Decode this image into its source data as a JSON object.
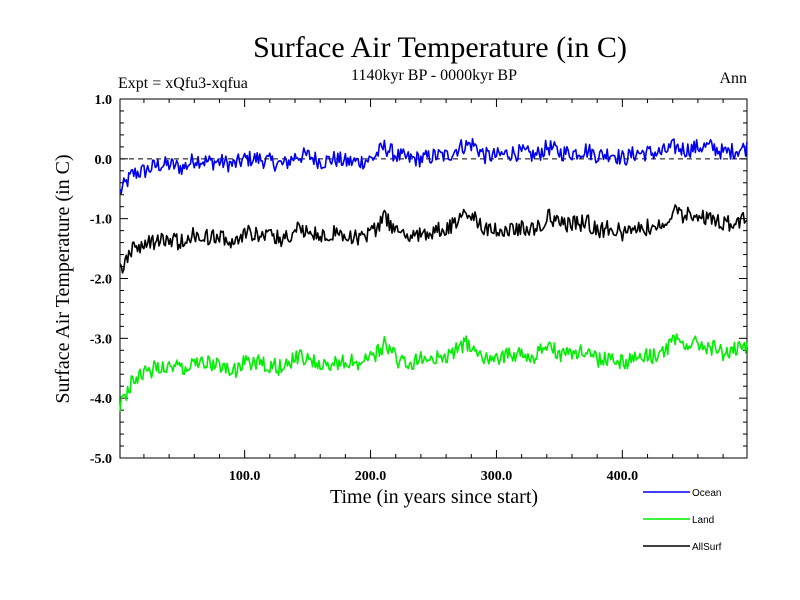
{
  "chart_data": {
    "type": "line",
    "title": "Surface Air Temperature (in C)",
    "subtitle": "1140kyr BP - 0000kyr BP",
    "left_note": "Expt = xQfu3-xqfua",
    "right_note": "Ann",
    "xlabel": "Time (in years since start)",
    "ylabel": "Surface Air Temperature (in C)",
    "xlim": [
      1,
      499
    ],
    "ylim": [
      -5.0,
      1.0
    ],
    "x_ticks": [
      100,
      200,
      300,
      400
    ],
    "x_tick_labels": [
      "100.0",
      "200.0",
      "300.0",
      "400.0"
    ],
    "y_ticks": [
      -5.0,
      -4.0,
      -3.0,
      -2.0,
      -1.0,
      0.0,
      1.0
    ],
    "y_tick_labels": [
      "-5.0",
      "-4.0",
      "-3.0",
      "-2.0",
      "-1.0",
      "0.0",
      "1.0"
    ],
    "reference_line": 0.0,
    "legend_position": "bottom-right",
    "series": [
      {
        "name": "Ocean",
        "color": "#0000ee",
        "x_step": 10,
        "values": [
          -0.55,
          -0.25,
          -0.2,
          -0.1,
          -0.1,
          -0.15,
          0.0,
          -0.05,
          -0.05,
          -0.1,
          0.0,
          0.0,
          -0.05,
          -0.1,
          0.05,
          0.05,
          -0.05,
          0.0,
          -0.05,
          -0.05,
          0.0,
          0.2,
          0.05,
          0.0,
          0.0,
          0.05,
          0.05,
          0.2,
          0.25,
          0.05,
          0.05,
          0.1,
          0.1,
          0.05,
          0.2,
          0.1,
          0.1,
          0.15,
          0.05,
          0.1,
          0.0,
          0.1,
          0.1,
          0.1,
          0.2,
          0.15,
          0.2,
          0.2,
          0.1,
          0.15
        ]
      },
      {
        "name": "Land",
        "color": "#00ee00",
        "x_step": 10,
        "values": [
          -4.15,
          -3.7,
          -3.6,
          -3.45,
          -3.45,
          -3.5,
          -3.35,
          -3.4,
          -3.45,
          -3.55,
          -3.4,
          -3.4,
          -3.45,
          -3.5,
          -3.3,
          -3.35,
          -3.45,
          -3.4,
          -3.4,
          -3.4,
          -3.35,
          -3.1,
          -3.35,
          -3.4,
          -3.35,
          -3.35,
          -3.3,
          -3.1,
          -3.1,
          -3.3,
          -3.3,
          -3.25,
          -3.3,
          -3.3,
          -3.1,
          -3.25,
          -3.25,
          -3.2,
          -3.35,
          -3.3,
          -3.4,
          -3.3,
          -3.3,
          -3.25,
          -3.05,
          -3.1,
          -3.1,
          -3.15,
          -3.25,
          -3.2
        ]
      },
      {
        "name": "AllSurf",
        "color": "#000000",
        "x_step": 10,
        "values": [
          -1.85,
          -1.5,
          -1.45,
          -1.35,
          -1.35,
          -1.4,
          -1.25,
          -1.3,
          -1.3,
          -1.4,
          -1.25,
          -1.25,
          -1.3,
          -1.35,
          -1.15,
          -1.2,
          -1.3,
          -1.25,
          -1.3,
          -1.3,
          -1.25,
          -1.0,
          -1.2,
          -1.25,
          -1.25,
          -1.2,
          -1.2,
          -1.0,
          -0.95,
          -1.2,
          -1.2,
          -1.15,
          -1.15,
          -1.2,
          -0.95,
          -1.1,
          -1.1,
          -1.05,
          -1.2,
          -1.15,
          -1.25,
          -1.15,
          -1.15,
          -1.1,
          -0.9,
          -0.95,
          -0.95,
          -1.0,
          -1.1,
          -1.05
        ]
      }
    ]
  }
}
